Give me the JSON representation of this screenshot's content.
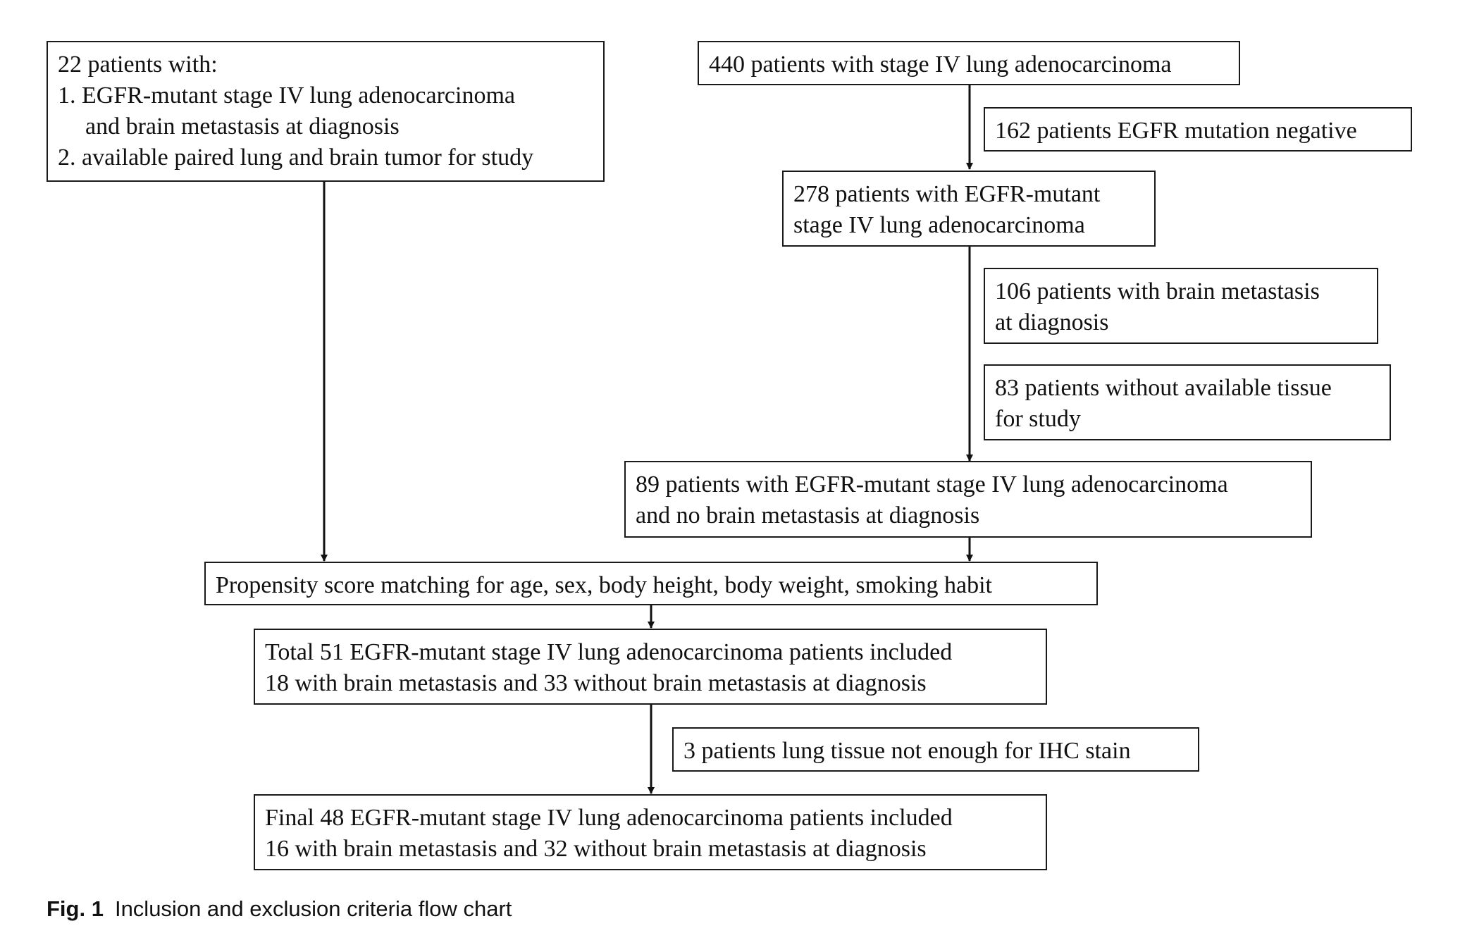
{
  "boxes": {
    "left_criteria": {
      "line1": "22 patients with:",
      "line2": "1. EGFR-mutant stage IV lung adenocarcinoma",
      "line3": "and brain metastasis at diagnosis",
      "line4": "2. available paired lung and brain tumor for study"
    },
    "total_440": {
      "line1": "440 patients with stage IV lung adenocarcinoma"
    },
    "excl_162": {
      "line1": "162 patients EGFR mutation negative"
    },
    "egfr_278": {
      "line1": "278 patients with EGFR-mutant",
      "line2": "stage IV lung adenocarcinoma"
    },
    "excl_106": {
      "line1": "106 patients with brain metastasis",
      "line2": "at diagnosis"
    },
    "excl_83": {
      "line1": "83 patients without available tissue",
      "line2": "for study"
    },
    "no_bm_89": {
      "line1": "89 patients with EGFR-mutant stage IV lung adenocarcinoma",
      "line2": "and no brain metastasis at diagnosis"
    },
    "psm": {
      "line1": "Propensity score matching for age, sex, body height, body weight, smoking habit"
    },
    "total_51": {
      "line1": "Total 51 EGFR-mutant stage IV lung adenocarcinoma patients included",
      "line2": "18 with brain metastasis and 33 without brain metastasis at diagnosis"
    },
    "excl_3": {
      "line1": "3 patients lung tissue not enough for IHC stain"
    },
    "final_48": {
      "line1": "Final 48 EGFR-mutant stage IV lung adenocarcinoma patients included",
      "line2": "16 with brain metastasis and 32 without brain metastasis at diagnosis"
    }
  },
  "caption": {
    "label": "Fig. 1",
    "text": "Inclusion and exclusion criteria flow chart"
  }
}
